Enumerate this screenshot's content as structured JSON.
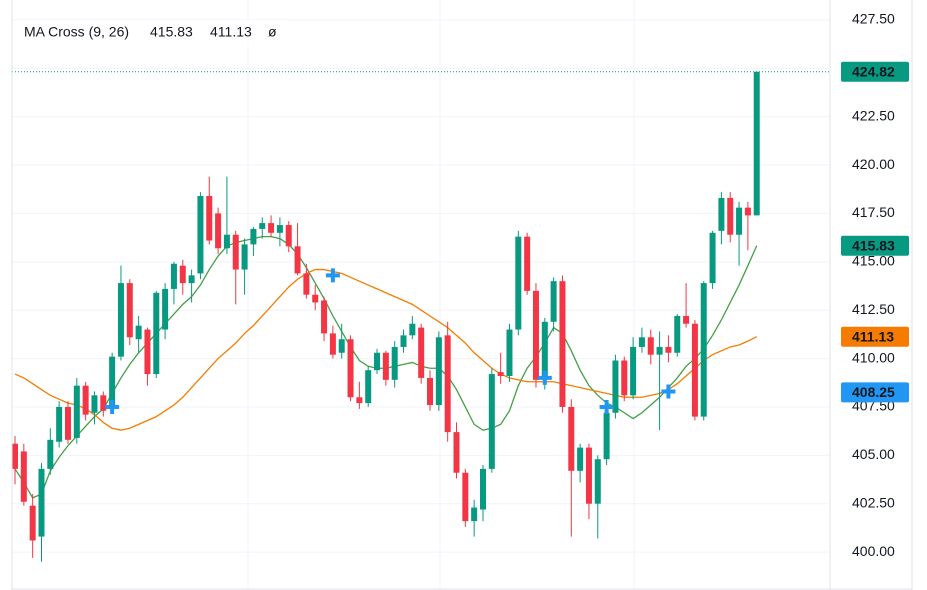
{
  "chart_data": {
    "type": "candlestick",
    "legend_title": "MA Cross (9, 26)",
    "legend_symbol": "ø",
    "up_color": "#089981",
    "down_color": "#f23645",
    "ylim": [
      398.04,
      428.53
    ],
    "yticks": [
      {
        "value": 400,
        "label": "400.00"
      },
      {
        "value": 402.5,
        "label": "402.50"
      },
      {
        "value": 405,
        "label": "405.00"
      },
      {
        "value": 407.5,
        "label": "407.50"
      },
      {
        "value": 410,
        "label": "410.00"
      },
      {
        "value": 412.5,
        "label": "412.50"
      },
      {
        "value": 415,
        "label": "415.00"
      },
      {
        "value": 417.5,
        "label": "417.50"
      },
      {
        "value": 420,
        "label": "420.00"
      },
      {
        "value": 422.5,
        "label": "422.50"
      },
      {
        "value": 425,
        "label": "425.00"
      },
      {
        "value": 427.5,
        "label": "427.50"
      }
    ],
    "grid": true,
    "ohlc": [
      [
        405.6,
        406,
        403.5,
        404.3
      ],
      [
        405.2,
        405.6,
        402.4,
        402.6
      ],
      [
        402.4,
        403,
        399.7,
        400.6
      ],
      [
        400.8,
        404.6,
        399.5,
        404.3
      ],
      [
        404.3,
        406.4,
        404,
        405.8
      ],
      [
        405.7,
        407.8,
        405.4,
        407.5
      ],
      [
        407.5,
        407.8,
        405.6,
        405.8
      ],
      [
        405.9,
        409,
        405.6,
        408.6
      ],
      [
        408.6,
        408.8,
        406.8,
        407.1
      ],
      [
        407.2,
        408.3,
        406.6,
        408.1
      ],
      [
        408.1,
        408.3,
        407,
        407.3
      ],
      [
        407.4,
        410.3,
        407.2,
        410.1
      ],
      [
        410.1,
        414.8,
        409.9,
        413.9
      ],
      [
        413.9,
        414.1,
        410.7,
        411.1
      ],
      [
        411,
        412.2,
        410.3,
        411.7
      ],
      [
        411.5,
        411.6,
        408.6,
        409.2
      ],
      [
        409.2,
        413.5,
        409,
        413.4
      ],
      [
        411.5,
        413.9,
        411,
        413.6
      ],
      [
        413.6,
        415,
        412.8,
        414.9
      ],
      [
        414.8,
        415.1,
        413.3,
        413.9
      ],
      [
        413.9,
        414.6,
        412.9,
        414.3
      ],
      [
        414.4,
        418.6,
        414.1,
        418.4
      ],
      [
        418.4,
        419.4,
        415.9,
        416.1
      ],
      [
        417.5,
        417.8,
        415.4,
        415.7
      ],
      [
        415.7,
        419.4,
        415.4,
        416.4
      ],
      [
        416.4,
        416.6,
        412.8,
        414.6
      ],
      [
        414.6,
        416.2,
        413.3,
        415.9
      ],
      [
        415.9,
        416.8,
        415.3,
        416.7
      ],
      [
        416.7,
        417.3,
        416.2,
        417
      ],
      [
        417,
        417.4,
        416.3,
        416.5
      ],
      [
        416.5,
        417.3,
        415.8,
        416.9
      ],
      [
        416.9,
        417.1,
        415.5,
        415.8
      ],
      [
        415.8,
        417,
        414.3,
        414.4
      ],
      [
        414.4,
        414.9,
        413.1,
        413.3
      ],
      [
        413.3,
        413.8,
        412.5,
        412.9
      ],
      [
        413,
        413.2,
        410.9,
        411.3
      ],
      [
        411.3,
        411.7,
        410,
        410.2
      ],
      [
        410.3,
        411.8,
        410,
        411
      ],
      [
        411,
        411.2,
        407.8,
        408
      ],
      [
        408,
        408.8,
        407.4,
        407.7
      ],
      [
        407.7,
        409.6,
        407.5,
        409.4
      ],
      [
        409.4,
        410.5,
        409.2,
        410.3
      ],
      [
        410.3,
        410.4,
        408.6,
        408.9
      ],
      [
        408.9,
        410.9,
        408.5,
        410.6
      ],
      [
        410.6,
        411.5,
        410.3,
        411.2
      ],
      [
        411.2,
        412.2,
        411,
        411.8
      ],
      [
        411.6,
        411.8,
        408.7,
        409
      ],
      [
        409,
        409.4,
        407.3,
        407.6
      ],
      [
        407.6,
        411.4,
        407.3,
        411.1
      ],
      [
        411.2,
        411.9,
        405.7,
        406.2
      ],
      [
        406.2,
        406.7,
        403.8,
        404.1
      ],
      [
        404.1,
        404.3,
        401.3,
        401.6
      ],
      [
        401.6,
        402.7,
        400.8,
        402.3
      ],
      [
        402.2,
        404.5,
        401.6,
        404.3
      ],
      [
        404.3,
        409.5,
        404.1,
        409.2
      ],
      [
        409.3,
        410.3,
        408.7,
        409.1
      ],
      [
        409.1,
        411.8,
        408.8,
        411.5
      ],
      [
        411.5,
        416.6,
        411.2,
        416.3
      ],
      [
        416.3,
        416.5,
        413.3,
        413.5
      ],
      [
        413.5,
        413.9,
        408.5,
        408.9
      ],
      [
        408.9,
        412.1,
        408.4,
        411.9
      ],
      [
        411.9,
        414.2,
        411.4,
        414
      ],
      [
        414,
        414.3,
        407.2,
        407.5
      ],
      [
        407.5,
        407.9,
        400.8,
        404.2
      ],
      [
        404.2,
        405.6,
        403.6,
        405.4
      ],
      [
        405.4,
        405.6,
        401.7,
        402.5
      ],
      [
        402.5,
        405,
        400.7,
        404.8
      ],
      [
        404.8,
        407.4,
        404.5,
        407.2
      ],
      [
        407.2,
        410.2,
        406.9,
        409.9
      ],
      [
        409.9,
        410.1,
        407.8,
        408.1
      ],
      [
        408.1,
        411.1,
        407.9,
        410.6
      ],
      [
        410.6,
        411.6,
        410.3,
        411.1
      ],
      [
        411.1,
        411.5,
        409.7,
        410.2
      ],
      [
        410.2,
        411.4,
        406.3,
        410.6
      ],
      [
        410.6,
        411.2,
        409.8,
        410.3
      ],
      [
        410.3,
        412.3,
        410.1,
        412.2
      ],
      [
        412.2,
        413.9,
        411.6,
        411.8
      ],
      [
        411.8,
        412,
        406.8,
        407
      ],
      [
        407,
        414,
        406.8,
        413.9
      ],
      [
        413.9,
        416.6,
        413.6,
        416.5
      ],
      [
        416.6,
        418.6,
        415.9,
        418.3
      ],
      [
        418.3,
        418.6,
        416,
        416.4
      ],
      [
        416.4,
        418.1,
        414.8,
        417.8
      ],
      [
        417.8,
        418.1,
        415.6,
        417.4
      ],
      [
        417.4,
        424.8,
        417.4,
        424.82
      ]
    ],
    "series": [
      {
        "color": "#43a047",
        "values": [
          404.3,
          403.6,
          402.8,
          403.0,
          404.2,
          404.9,
          405.5,
          406.0,
          406.5,
          407.0,
          407.4,
          408.2,
          409.0,
          409.7,
          410.3,
          410.8,
          411.3,
          411.8,
          412.3,
          412.8,
          413.2,
          413.8,
          414.6,
          415.3,
          415.8,
          416.0,
          416.1,
          416.2,
          416.3,
          416.3,
          416.2,
          415.9,
          415.4,
          414.7,
          413.9,
          413.1,
          412.2,
          411.4,
          410.6,
          409.9,
          409.6,
          409.5,
          409.5,
          409.6,
          409.7,
          409.8,
          409.6,
          409.5,
          409.5,
          409.1,
          408.4,
          407.5,
          406.6,
          406.3,
          406.4,
          406.6,
          407.3,
          408.6,
          409.5,
          410.1,
          410.8,
          411.6,
          411.3,
          410.4,
          409.4,
          408.6,
          408.1,
          407.7,
          407.5,
          407.2,
          406.9,
          407.2,
          407.6,
          408.0,
          408.5,
          409.0,
          409.6,
          410.0,
          410.5,
          411.2,
          412.0,
          412.9,
          413.8,
          414.8,
          415.83
        ]
      },
      {
        "color": "#f57c00",
        "values": [
          409.2,
          409.0,
          408.7,
          408.4,
          408.1,
          407.9,
          407.7,
          407.6,
          407.4,
          407.1,
          406.7,
          406.4,
          406.3,
          406.4,
          406.6,
          406.8,
          407.0,
          407.3,
          407.6,
          408.0,
          408.5,
          409.0,
          409.5,
          410.0,
          410.4,
          410.8,
          411.3,
          411.7,
          412.2,
          412.7,
          413.2,
          413.7,
          414.1,
          414.4,
          414.6,
          414.6,
          414.5,
          414.4,
          414.2,
          414.0,
          413.8,
          413.6,
          413.4,
          413.2,
          413.0,
          412.8,
          412.5,
          412.2,
          411.9,
          411.6,
          411.2,
          410.8,
          410.3,
          409.9,
          409.5,
          409.2,
          409.0,
          408.9,
          408.8,
          408.8,
          408.8,
          408.8,
          408.7,
          408.6,
          408.5,
          408.4,
          408.3,
          408.2,
          408.1,
          408.0,
          408.0,
          408.0,
          408.1,
          408.2,
          408.4,
          408.7,
          409.1,
          409.5,
          409.9,
          410.2,
          410.4,
          410.6,
          410.7,
          410.9,
          411.13
        ]
      }
    ],
    "crosses": {
      "color": "#2196f3",
      "x": [
        11,
        36,
        60,
        67,
        74
      ],
      "values": [
        407.5,
        414.3,
        409.0,
        407.5,
        408.3
      ]
    },
    "crosshair_price": 408.25
  }
}
